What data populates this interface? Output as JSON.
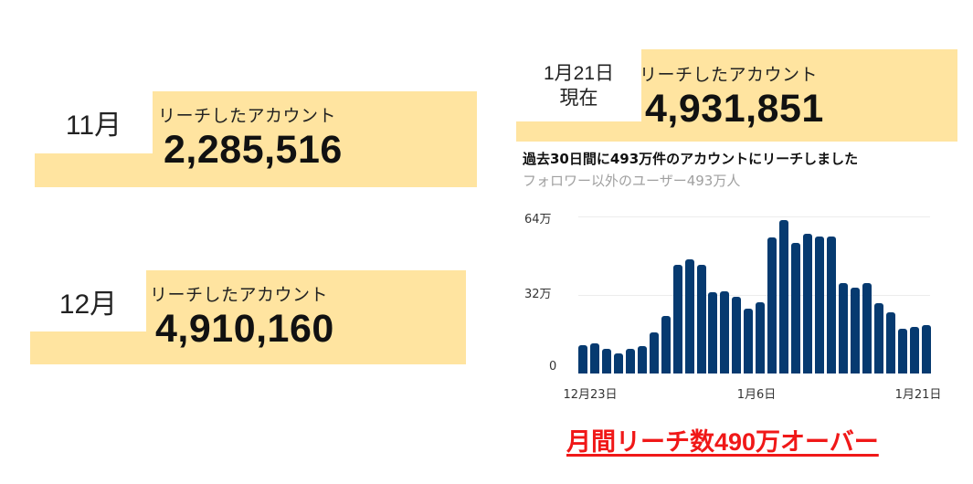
{
  "cards": [
    {
      "period": "11月",
      "label": "リーチしたアカウント",
      "value": "2,285,516"
    },
    {
      "period": "12月",
      "label": "リーチしたアカウント",
      "value": "4,910,160"
    },
    {
      "period_line1": "1月21日",
      "period_line2": "現在",
      "label": "リーチしたアカウント",
      "value": "4,931,851"
    }
  ],
  "chart_header": {
    "title": "過去30日間に493万件のアカウントにリーチしました",
    "subtitle": "フォロワー以外のユーザー493万人"
  },
  "chart_data": {
    "type": "bar",
    "title": "過去30日間に493万件のアカウントにリーチしました",
    "subtitle": "フォロワー以外のユーザー493万人",
    "xlabel": "",
    "ylabel": "",
    "unit": "万",
    "ylim": [
      0,
      64
    ],
    "yticks": [
      "0",
      "32万",
      "64万"
    ],
    "ytick_values": [
      0,
      32,
      64
    ],
    "grid": true,
    "x_tick_labels": [
      "12月23日",
      "1月6日",
      "1月21日"
    ],
    "x_tick_indices": [
      0,
      14,
      29
    ],
    "categories": [
      "12/23",
      "12/24",
      "12/25",
      "12/26",
      "12/27",
      "12/28",
      "12/29",
      "12/30",
      "12/31",
      "1/1",
      "1/2",
      "1/3",
      "1/4",
      "1/5",
      "1/6",
      "1/7",
      "1/8",
      "1/9",
      "1/10",
      "1/11",
      "1/12",
      "1/13",
      "1/14",
      "1/15",
      "1/16",
      "1/17",
      "1/18",
      "1/19",
      "1/20",
      "1/21"
    ],
    "values": [
      11.5,
      12.2,
      10.1,
      8.3,
      10.1,
      11.0,
      16.7,
      23.3,
      44.4,
      46.4,
      44.1,
      33.3,
      33.6,
      31.1,
      26.4,
      28.9,
      55.6,
      62.7,
      53.1,
      57.1,
      55.9,
      55.8,
      36.7,
      34.9,
      37.0,
      28.8,
      24.9,
      18.4,
      19.1,
      19.7
    ],
    "bar_color": "#063a70"
  },
  "caption": "月間リーチ数490万オーバー",
  "colors": {
    "card_bg": "#FFE4A0",
    "caption": "#f01818",
    "bar": "#063a70"
  }
}
